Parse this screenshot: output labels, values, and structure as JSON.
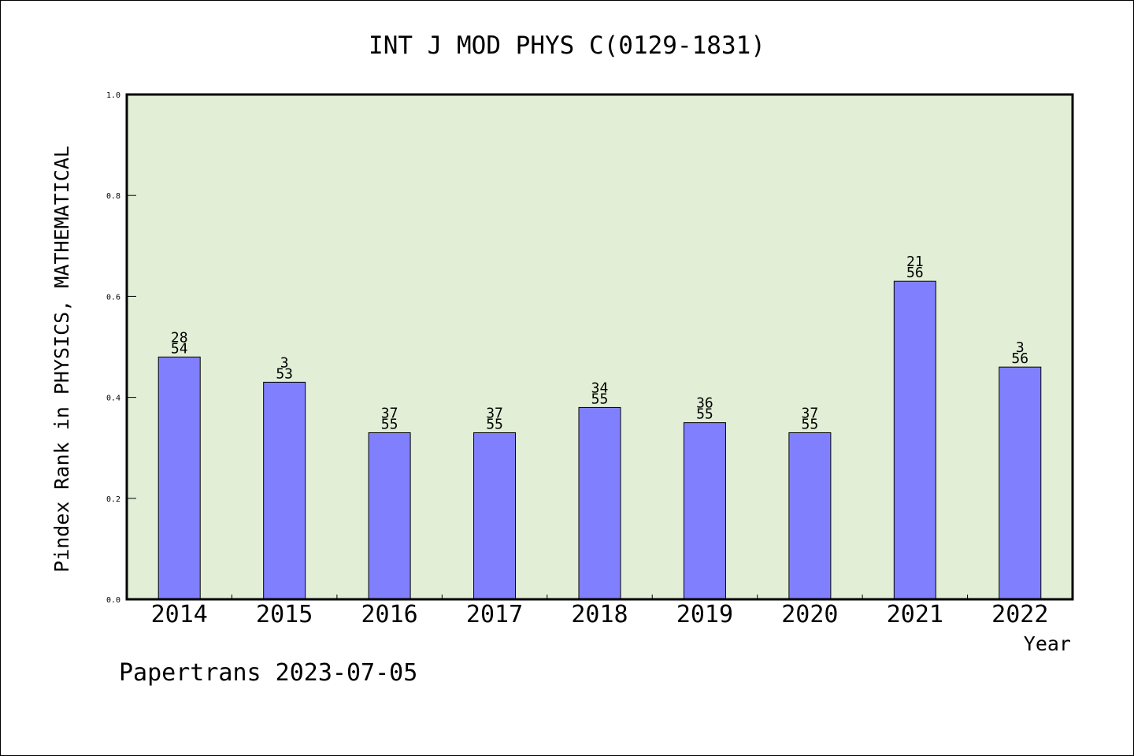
{
  "chart_data": {
    "type": "bar",
    "title": "INT J MOD PHYS C(0129-1831)",
    "xlabel": "Year",
    "ylabel": "Pindex Rank in PHYSICS, MATHEMATICAL",
    "ylim": [
      0,
      1.0
    ],
    "yticks": [
      "0.0",
      "0.2",
      "0.4",
      "0.6",
      "0.8",
      "1.0"
    ],
    "categories": [
      "2014",
      "2015",
      "2016",
      "2017",
      "2018",
      "2019",
      "2020",
      "2021",
      "2022"
    ],
    "values": [
      0.48,
      0.43,
      0.33,
      0.33,
      0.38,
      0.35,
      0.33,
      0.63,
      0.46
    ],
    "rank_labels": [
      "28",
      "3",
      "37",
      "37",
      "34",
      "36",
      "37",
      "21",
      "3"
    ],
    "total_labels": [
      "54",
      "53",
      "55",
      "55",
      "55",
      "55",
      "55",
      "56",
      "56"
    ],
    "grid": false,
    "legend": "none"
  },
  "footer": "Papertrans 2023-07-05",
  "colors": {
    "plot_background": "#e2efd6",
    "bar_fill": "#8080ff",
    "bar_stroke": "#000000",
    "axis": "#000000"
  }
}
